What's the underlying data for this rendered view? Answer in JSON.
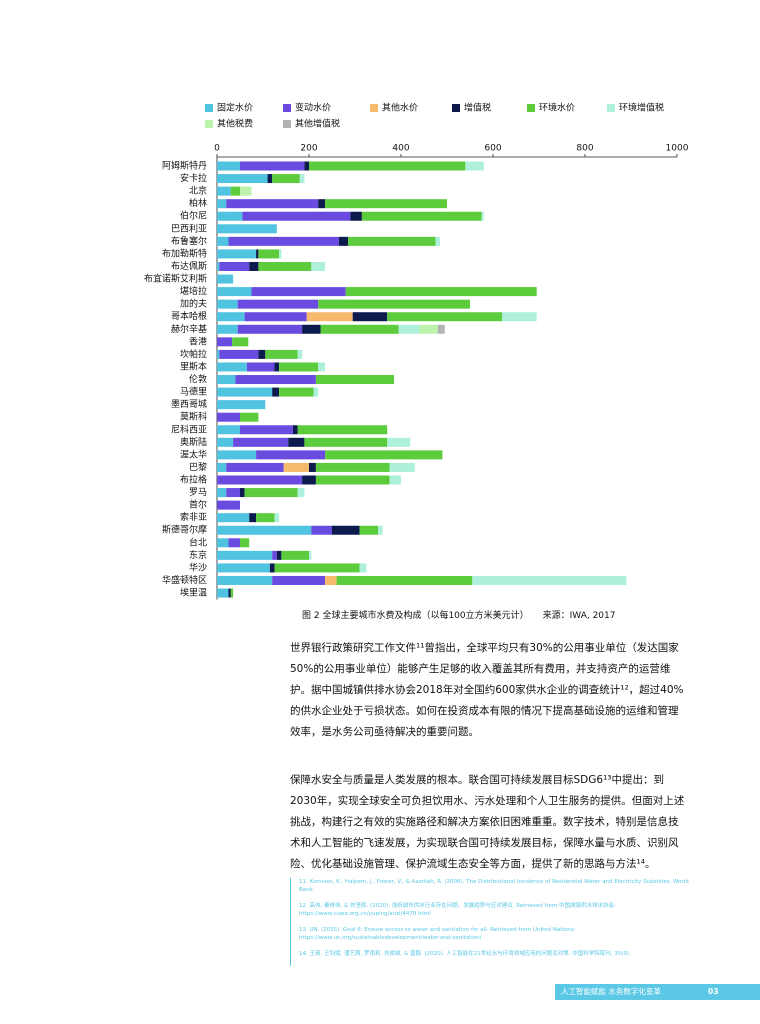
{
  "chart_data": {
    "type": "stacked-bar-horizontal",
    "categories": [
      "阿姆斯特丹",
      "安卡拉",
      "北京",
      "柏林",
      "伯尔尼",
      "巴西利亚",
      "布鲁塞尔",
      "布加勒斯特",
      "布达佩斯",
      "布宜诺斯艾利斯",
      "堪培拉",
      "加的夫",
      "哥本哈根",
      "赫尔辛基",
      "香港",
      "坎帕拉",
      "里斯本",
      "伦敦",
      "马德里",
      "墨西哥城",
      "莫斯科",
      "尼科西亚",
      "奥斯陆",
      "渥太华",
      "巴黎",
      "布拉格",
      "罗马",
      "首尔",
      "索非亚",
      "斯德哥尔摩",
      "台北",
      "东京",
      "华沙",
      "华盛顿特区",
      "埃里温"
    ],
    "xlim": [
      0,
      1000
    ],
    "xticks": [
      0,
      200,
      400,
      600,
      800,
      1000
    ],
    "series": [
      {
        "name": "固定水价",
        "color": "#4fc3e0",
        "values": [
          50,
          110,
          30,
          20,
          55,
          130,
          25,
          85,
          5,
          35,
          75,
          45,
          60,
          45,
          0,
          5,
          65,
          40,
          120,
          105,
          0,
          50,
          35,
          85,
          20,
          0,
          20,
          0,
          70,
          205,
          25,
          120,
          115,
          120,
          25
        ]
      },
      {
        "name": "变动水价",
        "color": "#6a4be0",
        "values": [
          140,
          0,
          0,
          200,
          235,
          0,
          240,
          0,
          65,
          0,
          205,
          175,
          135,
          140,
          33,
          85,
          60,
          175,
          0,
          0,
          50,
          115,
          120,
          150,
          125,
          185,
          30,
          50,
          0,
          45,
          25,
          10,
          0,
          115,
          0
        ]
      },
      {
        "name": "其他水价",
        "color": "#f7b96b",
        "values": [
          0,
          0,
          0,
          0,
          0,
          0,
          0,
          0,
          0,
          0,
          0,
          0,
          100,
          0,
          0,
          0,
          0,
          0,
          0,
          0,
          0,
          0,
          0,
          0,
          55,
          0,
          0,
          0,
          0,
          0,
          0,
          0,
          0,
          25,
          0
        ]
      },
      {
        "name": "增值税",
        "color": "#0d1a4d",
        "values": [
          10,
          10,
          0,
          15,
          25,
          0,
          20,
          5,
          20,
          0,
          0,
          0,
          75,
          40,
          0,
          15,
          10,
          0,
          15,
          0,
          0,
          10,
          35,
          0,
          15,
          30,
          10,
          0,
          15,
          60,
          0,
          10,
          10,
          0,
          5
        ]
      },
      {
        "name": "环境水价",
        "color": "#5ccc3c",
        "values": [
          340,
          60,
          20,
          265,
          260,
          0,
          190,
          45,
          115,
          0,
          415,
          330,
          250,
          170,
          35,
          70,
          85,
          170,
          75,
          0,
          40,
          195,
          180,
          255,
          160,
          160,
          115,
          0,
          40,
          40,
          20,
          60,
          185,
          295,
          5
        ]
      },
      {
        "name": "环境增值税",
        "color": "#aef0dc",
        "values": [
          40,
          10,
          0,
          0,
          5,
          0,
          10,
          5,
          30,
          0,
          0,
          0,
          75,
          45,
          0,
          10,
          15,
          0,
          10,
          0,
          0,
          0,
          50,
          0,
          55,
          25,
          15,
          0,
          10,
          10,
          0,
          5,
          15,
          335,
          0
        ]
      },
      {
        "name": "其他税费",
        "color": "#bdf2ad",
        "values": [
          0,
          0,
          25,
          0,
          0,
          0,
          0,
          0,
          0,
          0,
          0,
          0,
          0,
          40,
          0,
          0,
          0,
          0,
          0,
          0,
          0,
          0,
          0,
          0,
          0,
          0,
          0,
          0,
          0,
          0,
          0,
          0,
          0,
          0,
          0
        ]
      },
      {
        "name": "其他增值税",
        "color": "#b3b3b3",
        "values": [
          0,
          0,
          0,
          0,
          0,
          0,
          0,
          0,
          0,
          0,
          0,
          0,
          0,
          15,
          0,
          0,
          0,
          0,
          0,
          0,
          0,
          0,
          0,
          0,
          0,
          0,
          0,
          0,
          0,
          0,
          0,
          0,
          0,
          0,
          0
        ]
      }
    ]
  },
  "caption": [
    "图 2  全球主要城市水费及构成（以每100立方米美元计）",
    "来源：IWA, 2017"
  ],
  "paragraphs": [
    "世界银行政策研究工作文件¹¹曾指出，全球平均只有30%的公用事业单位（发达国家50%的公用事业单位）能够产生足够的收入覆盖其所有费用，并支持资产的运营维护。据中国城镇供排水协会2018年对全国约600家供水企业的调查统计¹²，超过40%的供水企业处于亏损状态。如何在投资成本有限的情况下提高基础设施的运维和管理效率，是水务公司亟待解决的重要问题。",
    "保障水安全与质量是人类发展的根本。联合国可持续发展目标SDG6¹³中提出：到2030年，实现全球安全可负担饮用水、污水处理和个人卫生服务的提供。但面对上述挑战，构建行之有效的实施路径和解决方案依旧困难重重。数字技术，特别是信息技术和人工智能的飞速发展，为实现联合国可持续发展目标，保障水量与水质、识别风险、优化基础设施管理、保护流域生态安全等方面，提供了新的思路与方法¹⁴。"
  ],
  "footnotes": [
    "11.  Komives, K., Halpern, J., Foster, V., & Aastilah, R. (2006). The Distributional Incidence of Residential Water and Electricity Subsidies. World Bank.",
    "12.  高伟, 秦林伟, & 刘坚辉. (2020). 浅析城市供水行业存在问题、发展趋势与应对建议. Retrieved from 中国城镇供水排水协会: https://www.cuwa.org.cn/yuping/anzi/4470.html",
    "13.  UN. (2015). Goal 6: Ensure access to water and sanitation for all. Retrieved from United Nations: https://www.un.org/sustainabledevelopment/water-and-sanitation/",
    "14.  王琦, 王钊斌, 潘艺茜, 罗雨莉, 刘俊颖, & 晋毅. (2020). 人工智能在21世纪水与环境领域应用的问题及对策. 中国科学院院刊, 35(9)."
  ],
  "footer": {
    "title": "人工智能赋能  水务数字化变革",
    "page": "03"
  }
}
